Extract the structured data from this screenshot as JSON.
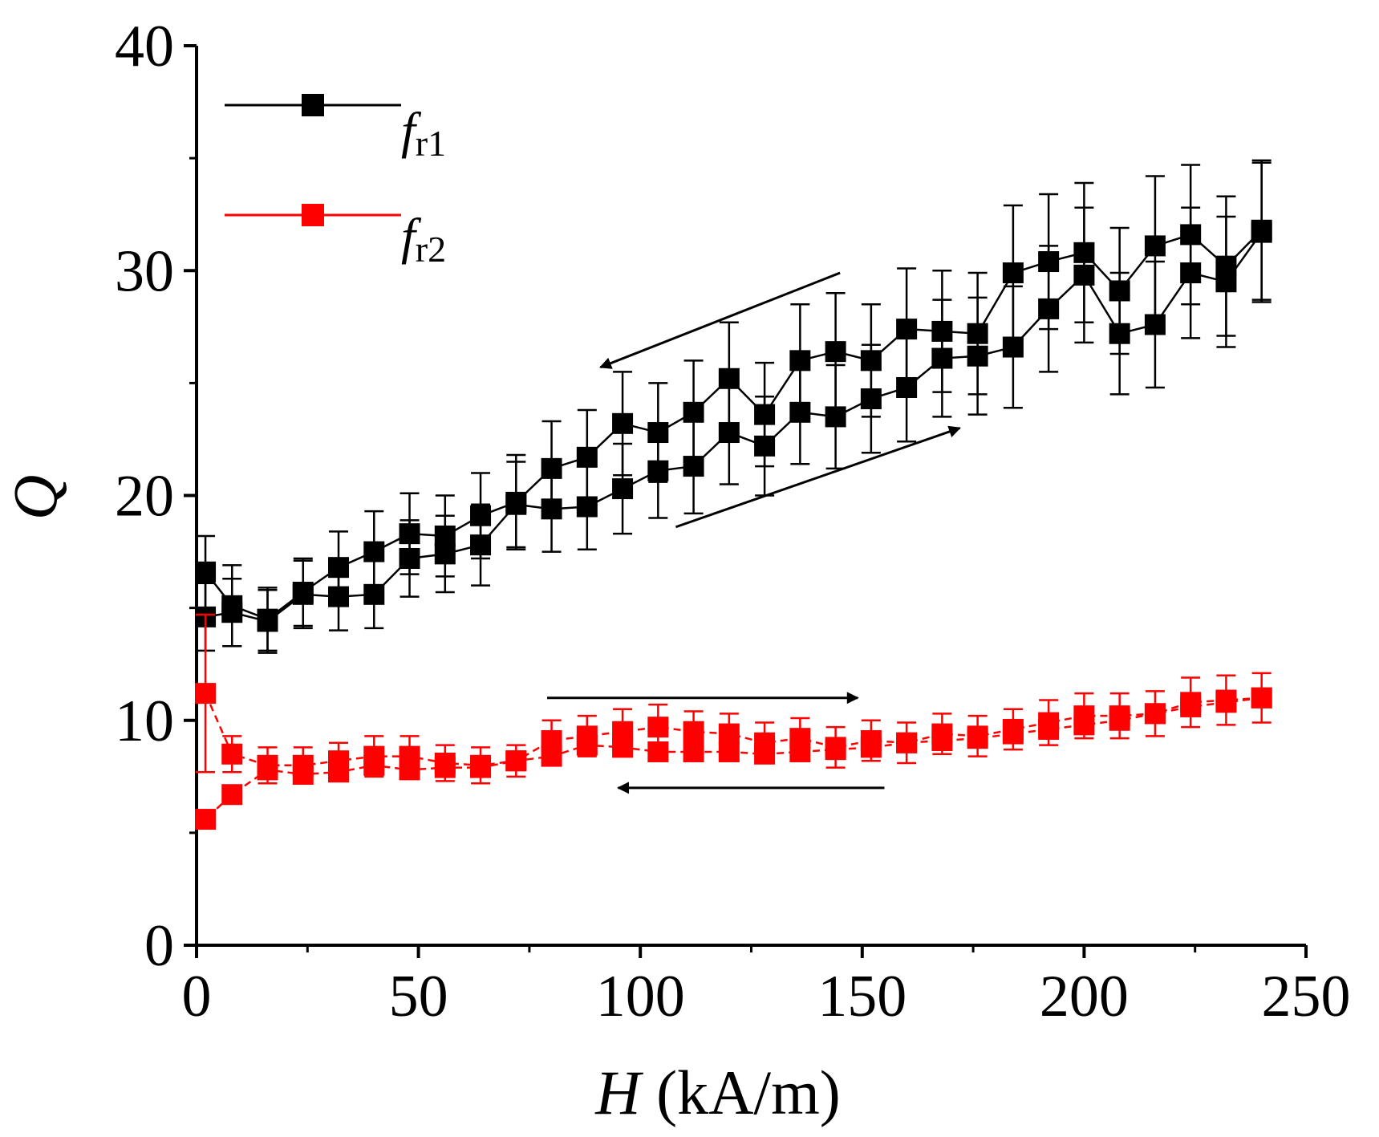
{
  "chart_data": {
    "type": "line",
    "title": "",
    "xlabel": {
      "symbol": "H",
      "unit": " (kA/m)"
    },
    "ylabel": "Q",
    "xlim": [
      0,
      250
    ],
    "ylim": [
      0,
      40
    ],
    "xticks": [
      0,
      50,
      100,
      150,
      200,
      250
    ],
    "yticks": [
      0,
      10,
      20,
      30,
      40
    ],
    "legend": "top-left",
    "series": [
      {
        "name": "f_r1",
        "legend_main": "f",
        "legend_sub": "r1",
        "color": "#000000",
        "line_style": "solid",
        "marker": "square",
        "branches": [
          {
            "name": "decreasing",
            "x": [
              240,
              232,
              224,
              216,
              208,
              200,
              192,
              184,
              176,
              168,
              160,
              152,
              144,
              136,
              128,
              120,
              112,
              104,
              96,
              88,
              80,
              72,
              64,
              56,
              48,
              40,
              32,
              24,
              16,
              8,
              2
            ],
            "y": [
              31.8,
              30.2,
              31.6,
              31.1,
              29.1,
              30.8,
              30.4,
              29.9,
              27.2,
              27.3,
              27.4,
              26.0,
              26.4,
              26.0,
              23.6,
              25.2,
              23.7,
              22.8,
              23.2,
              21.7,
              21.2,
              19.7,
              19.1,
              18.2,
              18.3,
              17.5,
              16.8,
              15.7,
              14.5,
              15.1,
              16.6
            ],
            "err": [
              3.1,
              3.1,
              3.1,
              3.1,
              2.8,
              3.1,
              3.0,
              3.0,
              2.7,
              2.7,
              2.7,
              2.5,
              2.6,
              2.5,
              2.3,
              2.5,
              2.3,
              2.2,
              2.3,
              2.1,
              2.1,
              2.1,
              1.9,
              1.8,
              1.8,
              1.8,
              1.6,
              1.5,
              1.4,
              1.8,
              1.6
            ]
          },
          {
            "name": "increasing",
            "x": [
              2,
              8,
              16,
              24,
              32,
              40,
              48,
              56,
              64,
              72,
              80,
              88,
              96,
              104,
              112,
              120,
              128,
              136,
              144,
              152,
              160,
              168,
              176,
              184,
              192,
              200,
              208,
              216,
              224,
              232,
              240
            ],
            "y": [
              14.6,
              14.8,
              14.4,
              15.6,
              15.5,
              15.6,
              17.2,
              17.4,
              17.8,
              19.6,
              19.4,
              19.5,
              20.3,
              21.1,
              21.3,
              22.8,
              22.2,
              23.7,
              23.5,
              24.3,
              24.8,
              26.1,
              26.2,
              26.6,
              28.3,
              29.8,
              27.2,
              27.6,
              29.9,
              29.5,
              31.7
            ],
            "err": [
              1.5,
              1.5,
              1.4,
              1.5,
              1.5,
              1.5,
              1.7,
              1.7,
              1.8,
              1.9,
              1.9,
              1.9,
              2.0,
              2.1,
              2.1,
              2.3,
              2.2,
              2.3,
              2.3,
              2.4,
              2.4,
              2.6,
              2.6,
              2.7,
              2.8,
              3.0,
              2.7,
              2.8,
              2.9,
              2.9,
              3.1
            ]
          }
        ]
      },
      {
        "name": "f_r2",
        "legend_main": "f",
        "legend_sub": "r2",
        "color": "#ff0000",
        "line_style": "dashed",
        "marker": "square",
        "branches": [
          {
            "name": "increasing",
            "x": [
              2,
              8,
              16,
              24,
              32,
              40,
              48,
              56,
              64,
              72,
              80,
              88,
              96,
              104,
              112,
              120,
              128,
              136,
              144,
              152,
              160,
              168,
              176,
              184,
              192,
              200,
              208,
              216,
              224,
              232,
              240
            ],
            "y": [
              11.2,
              8.5,
              8.0,
              8.0,
              8.2,
              8.4,
              8.4,
              8.1,
              8.0,
              8.2,
              9.1,
              9.3,
              9.5,
              9.7,
              9.5,
              9.4,
              9.0,
              9.2,
              8.8,
              9.1,
              9.0,
              9.4,
              9.3,
              9.6,
              9.9,
              10.2,
              10.2,
              10.3,
              10.8,
              10.9,
              11.0
            ],
            "err": [
              3.5,
              0.8,
              0.8,
              0.8,
              0.8,
              0.9,
              0.9,
              0.8,
              0.8,
              0.7,
              0.9,
              0.9,
              1.0,
              1.0,
              0.9,
              0.9,
              0.9,
              0.9,
              0.9,
              0.9,
              0.9,
              0.9,
              0.9,
              0.9,
              1.0,
              1.0,
              1.0,
              1.0,
              1.1,
              1.1,
              1.1
            ]
          },
          {
            "name": "decreasing",
            "x": [
              240,
              232,
              224,
              216,
              208,
              200,
              192,
              184,
              176,
              168,
              160,
              152,
              144,
              136,
              128,
              120,
              112,
              104,
              96,
              88,
              80,
              72,
              64,
              56,
              48,
              40,
              32,
              24,
              16,
              8,
              2
            ],
            "y": [
              11.0,
              10.8,
              10.6,
              10.3,
              10.0,
              9.8,
              9.6,
              9.4,
              9.2,
              9.1,
              9.0,
              8.8,
              8.7,
              8.6,
              8.5,
              8.6,
              8.6,
              8.6,
              8.8,
              8.9,
              8.4,
              8.2,
              7.9,
              7.9,
              7.8,
              8.0,
              7.7,
              7.6,
              7.8,
              6.7,
              5.6
            ]
          }
        ]
      }
    ],
    "annotations": [
      {
        "type": "arrow",
        "series": "f_r1",
        "label": "decreasing field",
        "from": [
          145,
          29.9
        ],
        "to": [
          91,
          25.7
        ]
      },
      {
        "type": "arrow",
        "series": "f_r1",
        "label": "increasing field",
        "from": [
          108,
          18.6
        ],
        "to": [
          172,
          23.0
        ]
      },
      {
        "type": "arrow",
        "series": "f_r2",
        "label": "increasing field",
        "from": [
          79,
          11.0
        ],
        "to": [
          149,
          11.0
        ]
      },
      {
        "type": "arrow",
        "series": "f_r2",
        "label": "decreasing field",
        "from": [
          155,
          7.0
        ],
        "to": [
          95,
          7.0
        ]
      }
    ]
  }
}
